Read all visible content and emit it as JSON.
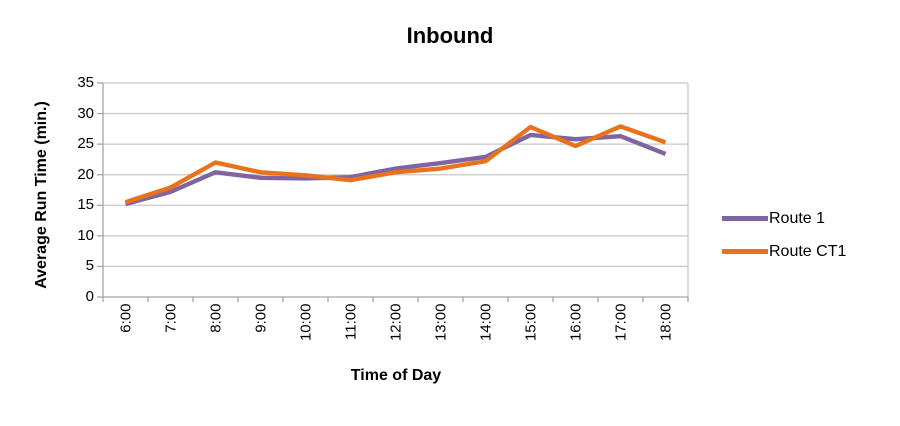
{
  "chart_data": {
    "type": "line",
    "title": "Inbound",
    "xlabel": "Time of Day",
    "ylabel": "Average Run Time (min.)",
    "categories": [
      "6:00",
      "7:00",
      "8:00",
      "9:00",
      "10:00",
      "11:00",
      "12:00",
      "13:00",
      "14:00",
      "15:00",
      "16:00",
      "17:00",
      "18:00"
    ],
    "series": [
      {
        "name": "Route 1",
        "color": "#8064A2",
        "values": [
          15.2,
          17.2,
          20.4,
          19.5,
          19.4,
          19.6,
          21.0,
          21.9,
          22.9,
          26.5,
          25.8,
          26.3,
          23.4
        ]
      },
      {
        "name": "Route CT1",
        "color": "#E8731C",
        "values": [
          15.5,
          17.9,
          22.0,
          20.4,
          19.9,
          19.1,
          20.4,
          21.0,
          22.2,
          27.8,
          24.7,
          27.9,
          25.3
        ]
      }
    ],
    "ylim": [
      0,
      35
    ],
    "y_ticks": [
      0,
      5,
      10,
      15,
      20,
      25,
      30,
      35
    ],
    "grid": "horizontal",
    "legend_position": "right"
  },
  "colors": {
    "grid": "#C9C9C9",
    "axis": "#A6A6A6",
    "text": "#000000",
    "background": "#FFFFFF"
  }
}
